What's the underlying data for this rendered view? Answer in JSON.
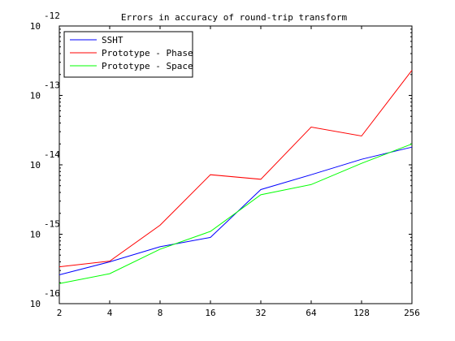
{
  "chart_data": {
    "type": "line",
    "title": "Errors in accuracy of round-trip transform",
    "xlabel": "",
    "ylabel": "",
    "x_scale": "log2",
    "y_scale": "log10",
    "x": [
      2,
      4,
      8,
      16,
      32,
      64,
      128,
      256
    ],
    "x_ticks": [
      "2",
      "4",
      "8",
      "16",
      "32",
      "64",
      "128",
      "256"
    ],
    "y_ticks": [
      {
        "base": "10",
        "exp": "-16",
        "value": 1e-16
      },
      {
        "base": "10",
        "exp": "-15",
        "value": 1e-15
      },
      {
        "base": "10",
        "exp": "-14",
        "value": 1e-14
      },
      {
        "base": "10",
        "exp": "-13",
        "value": 1e-13
      },
      {
        "base": "10",
        "exp": "-12",
        "value": 1e-12
      }
    ],
    "ylim": [
      1e-16,
      1e-12
    ],
    "grid": false,
    "legend_position": "top-left",
    "series": [
      {
        "name": "SSHT",
        "color": "#0000ff",
        "values": [
          2.6e-16,
          4e-16,
          6.6e-16,
          9e-16,
          4.4e-15,
          7.2e-15,
          1.2e-14,
          1.8e-14
        ]
      },
      {
        "name": "Prototype - Phase",
        "color": "#ff0000",
        "values": [
          3.4e-16,
          4.1e-16,
          1.35e-15,
          7.2e-15,
          6.2e-15,
          3.5e-14,
          2.6e-14,
          2.3e-13
        ]
      },
      {
        "name": "Prototype - Space",
        "color": "#00ff00",
        "values": [
          1.95e-16,
          2.7e-16,
          6.1e-16,
          1.1e-15,
          3.7e-15,
          5.2e-15,
          1.05e-14,
          2e-14
        ]
      }
    ]
  }
}
